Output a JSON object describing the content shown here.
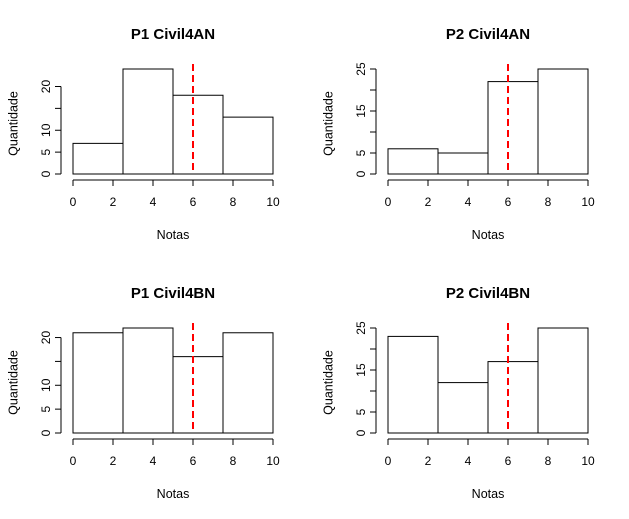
{
  "chart_data": [
    {
      "type": "bar",
      "title": "P1 Civil4AN",
      "xlabel": "Notas",
      "ylabel": "Quantidade",
      "x_ticks": [
        "0",
        "2",
        "4",
        "6",
        "8",
        "10"
      ],
      "y_ticks": [
        "0",
        "5",
        "10",
        "20"
      ],
      "y_tick_values": [
        0,
        5,
        10,
        20
      ],
      "y_minor_ticks": [
        15
      ],
      "bins": [
        [
          0,
          2.5
        ],
        [
          2.5,
          5
        ],
        [
          5,
          7.5
        ],
        [
          7.5,
          10
        ]
      ],
      "values": [
        7,
        24,
        18,
        13
      ],
      "xlim": [
        0,
        10
      ],
      "ylim": [
        0,
        24
      ],
      "reference_line": {
        "x": 6,
        "color": "#ff0000",
        "style": "dashed"
      }
    },
    {
      "type": "bar",
      "title": "P2 Civil4AN",
      "xlabel": "Notas",
      "ylabel": "Quantidade",
      "x_ticks": [
        "0",
        "2",
        "4",
        "6",
        "8",
        "10"
      ],
      "y_ticks": [
        "0",
        "5",
        "15",
        "25"
      ],
      "y_tick_values": [
        0,
        5,
        15,
        25
      ],
      "y_minor_ticks": [
        10,
        20
      ],
      "bins": [
        [
          0,
          2.5
        ],
        [
          2.5,
          5
        ],
        [
          5,
          7.5
        ],
        [
          7.5,
          10
        ]
      ],
      "values": [
        6,
        5,
        22,
        25
      ],
      "xlim": [
        0,
        10
      ],
      "ylim": [
        0,
        25
      ],
      "reference_line": {
        "x": 6,
        "color": "#ff0000",
        "style": "dashed"
      }
    },
    {
      "type": "bar",
      "title": "P1 Civil4BN",
      "xlabel": "Notas",
      "ylabel": "Quantidade",
      "x_ticks": [
        "0",
        "2",
        "4",
        "6",
        "8",
        "10"
      ],
      "y_ticks": [
        "0",
        "5",
        "10",
        "20"
      ],
      "y_tick_values": [
        0,
        5,
        10,
        20
      ],
      "y_minor_ticks": [
        15
      ],
      "bins": [
        [
          0,
          2.5
        ],
        [
          2.5,
          5
        ],
        [
          5,
          7.5
        ],
        [
          7.5,
          10
        ]
      ],
      "values": [
        21,
        22,
        16,
        21
      ],
      "xlim": [
        0,
        10
      ],
      "ylim": [
        0,
        22
      ],
      "reference_line": {
        "x": 6,
        "color": "#ff0000",
        "style": "dashed"
      }
    },
    {
      "type": "bar",
      "title": "P2 Civil4BN",
      "xlabel": "Notas",
      "ylabel": "Quantidade",
      "x_ticks": [
        "0",
        "2",
        "4",
        "6",
        "8",
        "10"
      ],
      "y_ticks": [
        "0",
        "5",
        "15",
        "25"
      ],
      "y_tick_values": [
        0,
        5,
        15,
        25
      ],
      "y_minor_ticks": [
        10,
        20
      ],
      "bins": [
        [
          0,
          2.5
        ],
        [
          2.5,
          5
        ],
        [
          5,
          7.5
        ],
        [
          7.5,
          10
        ]
      ],
      "values": [
        23,
        12,
        17,
        25
      ],
      "xlim": [
        0,
        10
      ],
      "ylim": [
        0,
        25
      ],
      "reference_line": {
        "x": 6,
        "color": "#ff0000",
        "style": "dashed"
      }
    }
  ]
}
